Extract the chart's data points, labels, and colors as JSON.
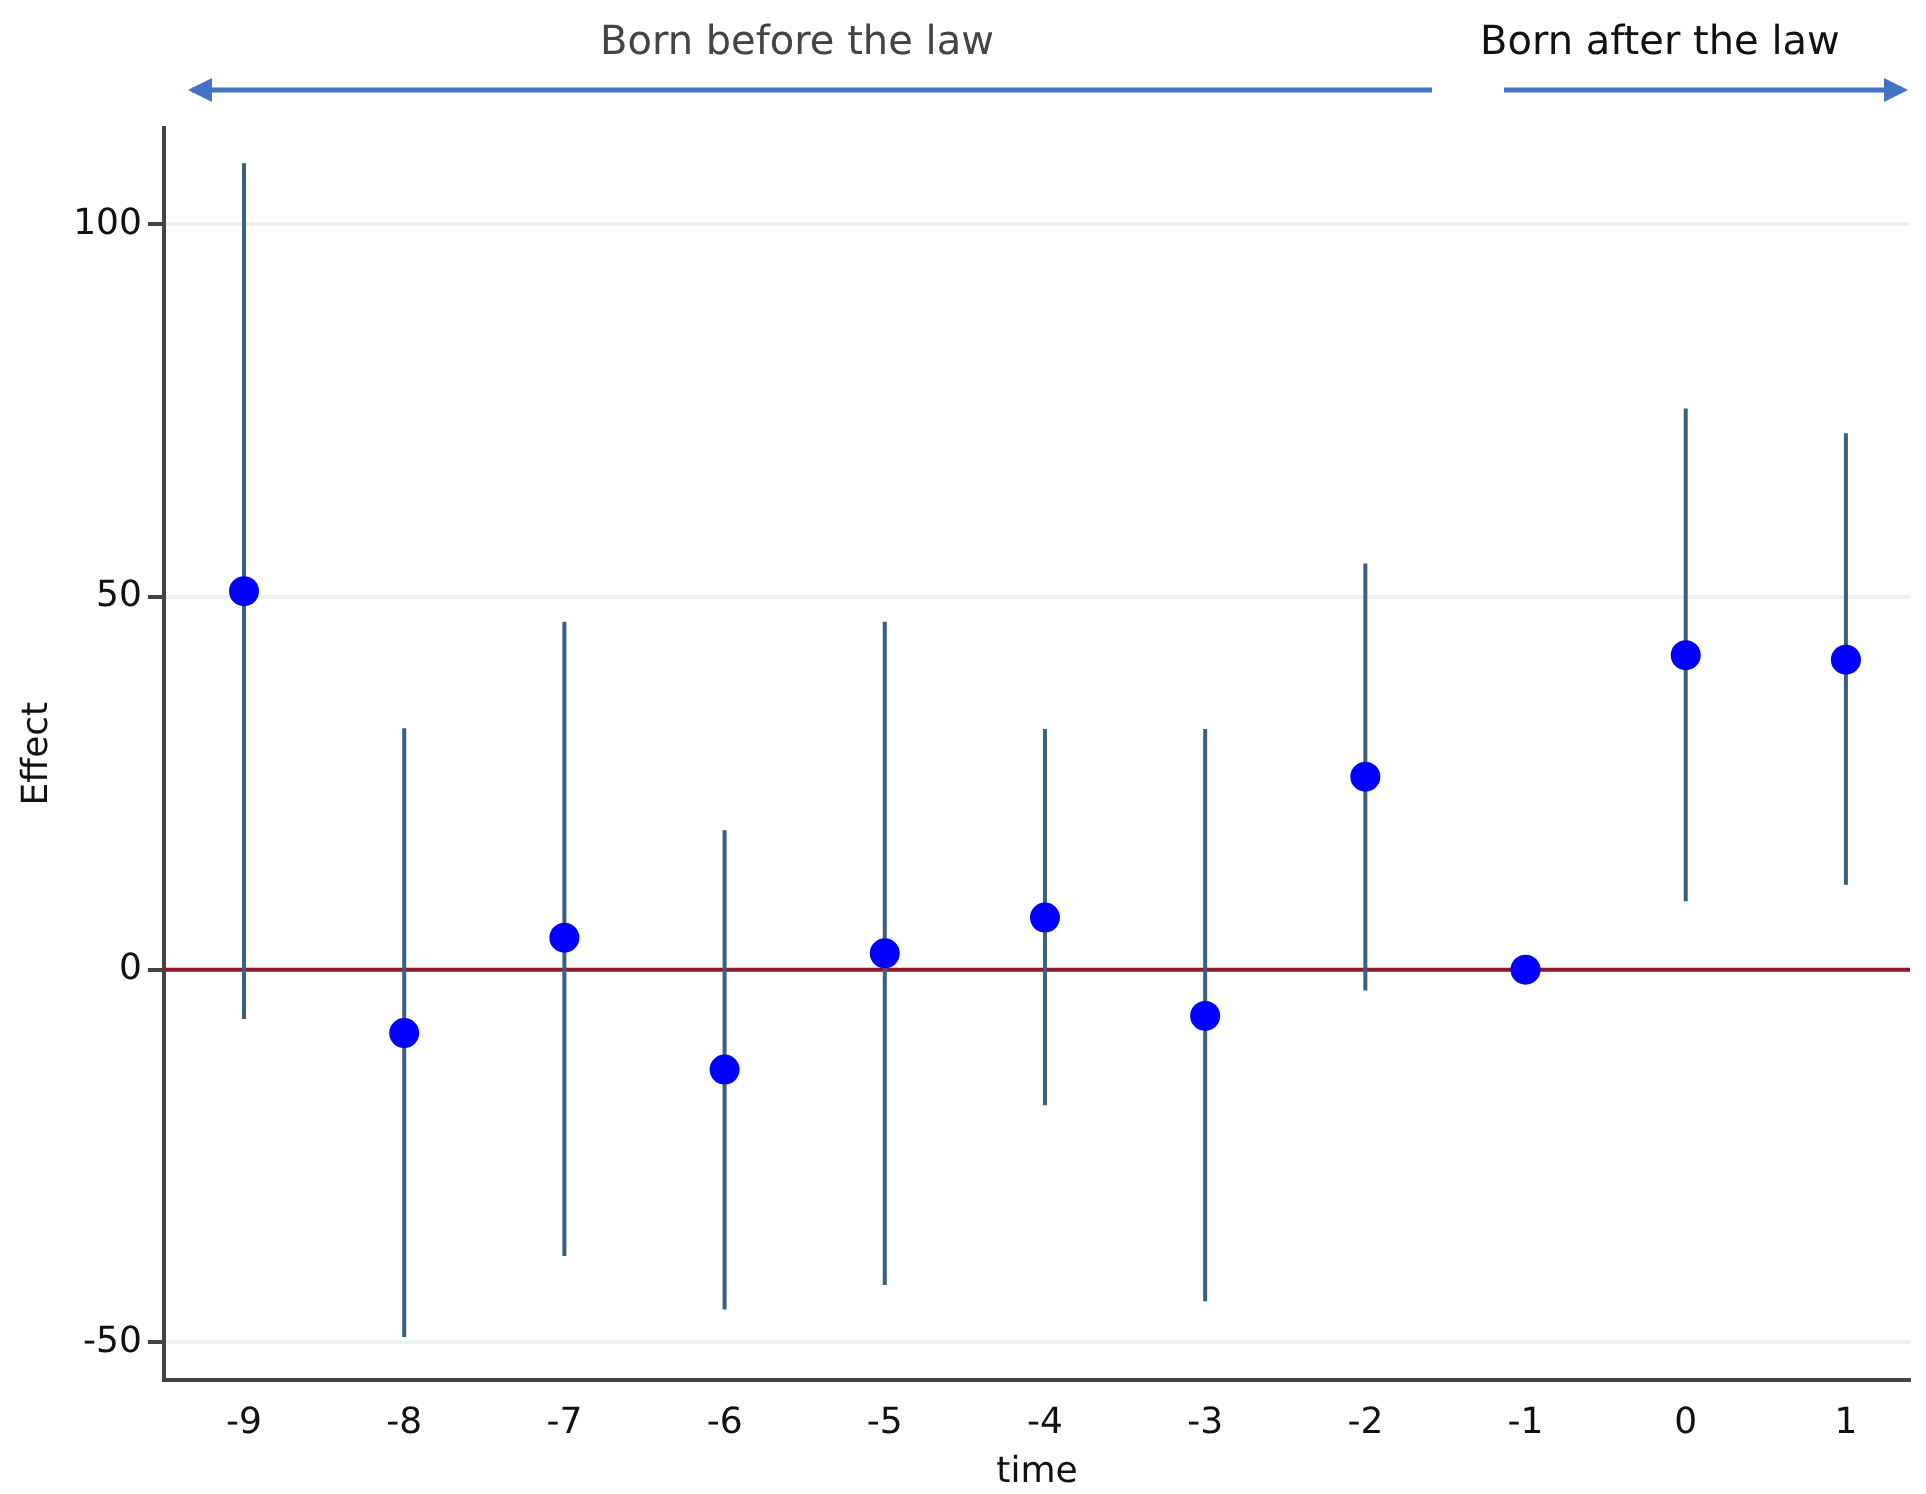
{
  "chart_data": {
    "type": "scatter",
    "xlabel": "time",
    "ylabel": "Effect",
    "annotations": [
      "Born before the law",
      "Born after the law"
    ],
    "x": [
      -9,
      -8,
      -7,
      -6,
      -5,
      -4,
      -3,
      -2,
      -1,
      0,
      1
    ],
    "series": [
      {
        "color": "#0000ff",
        "values": [
          50.8,
          -8.5,
          4.3,
          -13.4,
          2.2,
          7.0,
          -6.2,
          25.9,
          0,
          42.2,
          41.6
        ],
        "errors": [
          [
            -6.6,
            108.2
          ],
          [
            -49.3,
            32.4
          ],
          [
            -38.4,
            46.7
          ],
          [
            -45.6,
            18.7
          ],
          [
            -42.3,
            46.7
          ],
          [
            -18.2,
            32.3
          ],
          [
            -44.5,
            32.3
          ],
          [
            -2.8,
            54.5
          ],
          null,
          [
            9.2,
            75.3
          ],
          [
            11.4,
            72
          ]
        ]
      }
    ],
    "xlim": [
      -9.5,
      1.4
    ],
    "xticks": [
      -9,
      -8,
      -7,
      -6,
      -5,
      -4,
      -3,
      -2,
      -1,
      0,
      1
    ],
    "ylim": [
      -55,
      113
    ],
    "yticks": [
      -50,
      0,
      50,
      100
    ],
    "ref_lines": [
      {
        "axis": "y",
        "value": 0,
        "color": "#8b1a2b"
      }
    ],
    "grid": "y",
    "legend": false,
    "marker": "circle"
  }
}
